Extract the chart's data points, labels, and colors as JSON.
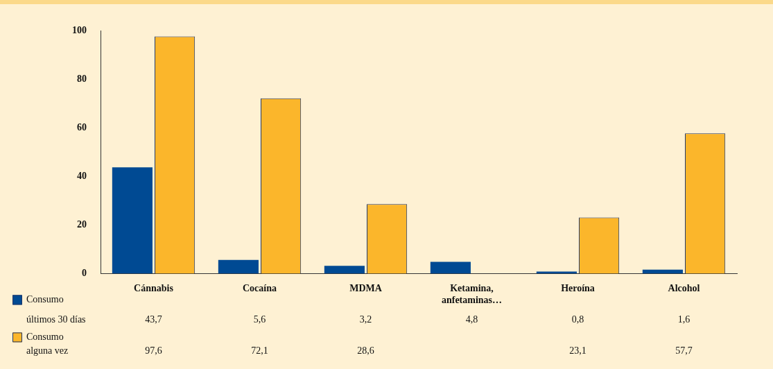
{
  "chart_data": {
    "type": "bar",
    "categories": [
      "Cánnabis",
      "Cocaína",
      "MDMA",
      "Ketamina, anfetaminas…",
      "Heroína",
      "Alcohol"
    ],
    "series": [
      {
        "name": "Consumo últimos 30 días",
        "color": "#004a93",
        "values": [
          43.7,
          5.6,
          3.2,
          4.8,
          0.8,
          1.6
        ],
        "value_labels": [
          "43,7",
          "5,6",
          "3,2",
          "4,8",
          "0,8",
          "1,6"
        ]
      },
      {
        "name": "Consumo alguna vez",
        "color": "#fbb62b",
        "values": [
          97.6,
          72.1,
          28.6,
          null,
          23.1,
          57.7
        ],
        "value_labels": [
          "97,6",
          "72,1",
          "28,6",
          null,
          "23,1",
          "57,7"
        ]
      }
    ],
    "ylim": [
      0,
      100
    ],
    "yticks": [
      0,
      20,
      40,
      60,
      80,
      100
    ],
    "grid": false,
    "legend": "bottom left"
  }
}
